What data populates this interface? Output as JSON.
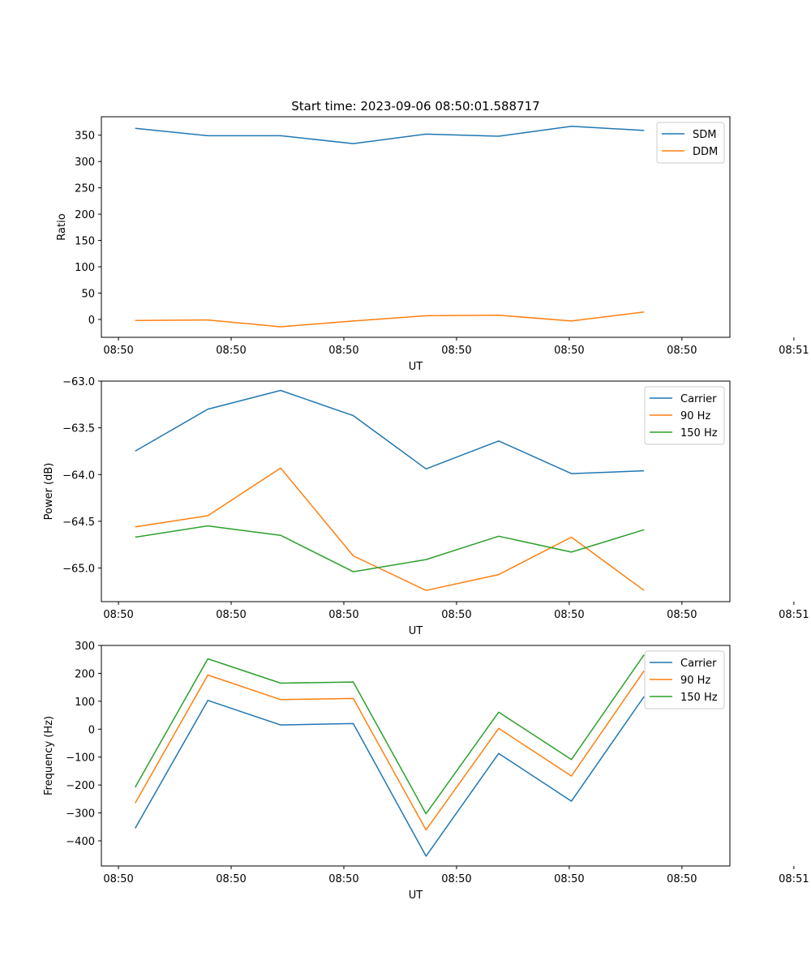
{
  "figure_title": "Start time: 2023-09-06 08:50:01.588717",
  "colors": {
    "blue": "#1f77b4",
    "orange": "#ff7f0e",
    "green": "#2ca02c"
  },
  "chart_data": [
    {
      "type": "line",
      "title": "Start time: 2023-09-06 08:50:01.588717",
      "xlabel": "UT",
      "ylabel": "Ratio",
      "x": [
        1,
        2,
        3,
        4,
        5,
        6,
        7,
        8
      ],
      "xlim": [
        0.535,
        9.18
      ],
      "x_ticks": [
        0.77,
        2.32,
        3.87,
        5.42,
        6.97,
        8.52,
        10.06
      ],
      "x_tick_labels": [
        "08:50",
        "08:50",
        "08:50",
        "08:50",
        "08:50",
        "08:50",
        "08:51"
      ],
      "ylim": [
        -34,
        385
      ],
      "y_ticks": [
        0,
        50,
        100,
        150,
        200,
        250,
        300,
        350
      ],
      "y_tick_labels": [
        "0",
        "50",
        "100",
        "150",
        "200",
        "250",
        "300",
        "350"
      ],
      "legend_position": "top-right",
      "series": [
        {
          "name": "SDM",
          "color": "#1f77b4",
          "values": [
            363,
            349,
            349,
            334,
            352,
            348,
            367,
            359
          ]
        },
        {
          "name": "DDM",
          "color": "#ff7f0e",
          "values": [
            -2,
            -1,
            -14,
            -3,
            7,
            8,
            -3,
            14
          ]
        }
      ]
    },
    {
      "type": "line",
      "title": "",
      "xlabel": "UT",
      "ylabel": "Power (dB)",
      "x": [
        1,
        2,
        3,
        4,
        5,
        6,
        7,
        8
      ],
      "xlim": [
        0.535,
        9.18
      ],
      "x_ticks": [
        0.77,
        2.32,
        3.87,
        5.42,
        6.97,
        8.52,
        10.06
      ],
      "x_tick_labels": [
        "08:50",
        "08:50",
        "08:50",
        "08:50",
        "08:50",
        "08:50",
        "08:51"
      ],
      "ylim": [
        -65.36,
        -63.0
      ],
      "y_ticks": [
        -65.0,
        -64.5,
        -64.0,
        -63.5,
        -63.0
      ],
      "y_tick_labels": [
        "−65.0",
        "−64.5",
        "−64.0",
        "−63.5",
        "−63.0"
      ],
      "legend_position": "top-right",
      "series": [
        {
          "name": "Carrier",
          "color": "#1f77b4",
          "values": [
            -63.75,
            -63.3,
            -63.1,
            -63.37,
            -63.94,
            -63.64,
            -63.99,
            -63.96
          ]
        },
        {
          "name": "90 Hz",
          "color": "#ff7f0e",
          "values": [
            -64.56,
            -64.44,
            -63.93,
            -64.87,
            -65.24,
            -65.07,
            -64.67,
            -65.24
          ]
        },
        {
          "name": "150 Hz",
          "color": "#2ca02c",
          "values": [
            -64.67,
            -64.55,
            -64.65,
            -65.04,
            -64.91,
            -64.66,
            -64.83,
            -64.59
          ]
        }
      ]
    },
    {
      "type": "line",
      "title": "",
      "xlabel": "UT",
      "ylabel": "Frequency (Hz)",
      "x": [
        1,
        2,
        3,
        4,
        5,
        6,
        7,
        8
      ],
      "xlim": [
        0.535,
        9.18
      ],
      "x_ticks": [
        0.77,
        2.32,
        3.87,
        5.42,
        6.97,
        8.52,
        10.06
      ],
      "x_tick_labels": [
        "08:50",
        "08:50",
        "08:50",
        "08:50",
        "08:50",
        "08:50",
        "08:51"
      ],
      "ylim": [
        -490,
        300
      ],
      "y_ticks": [
        -400,
        -300,
        -200,
        -100,
        0,
        100,
        200,
        300
      ],
      "y_tick_labels": [
        "−400",
        "−300",
        "−200",
        "−100",
        "0",
        "100",
        "200",
        "300"
      ],
      "legend_position": "top-right",
      "series": [
        {
          "name": "Carrier",
          "color": "#1f77b4",
          "values": [
            -355,
            103,
            15,
            20,
            -455,
            -87,
            -258,
            117
          ]
        },
        {
          "name": "90 Hz",
          "color": "#ff7f0e",
          "values": [
            -265,
            194,
            106,
            110,
            -361,
            3,
            -168,
            209
          ]
        },
        {
          "name": "150 Hz",
          "color": "#2ca02c",
          "values": [
            -208,
            252,
            165,
            169,
            -303,
            61,
            -109,
            267
          ]
        }
      ]
    }
  ]
}
